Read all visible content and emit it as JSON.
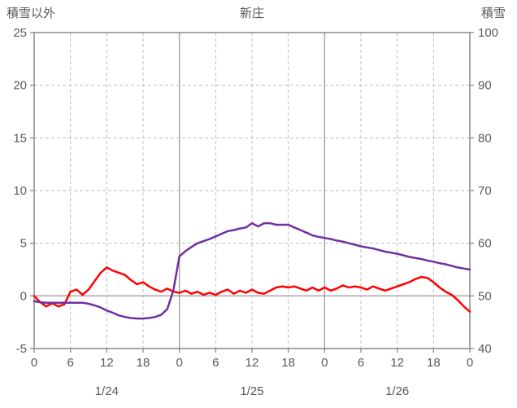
{
  "chart_data": {
    "type": "line",
    "title": "新庄",
    "background": "#ffffff",
    "colors": {
      "text": "#595959",
      "grid": "#bdbdbd",
      "solid_grid": "#a0a0a0",
      "border": "#888888"
    },
    "left_axis": {
      "title": "積雪以外",
      "min": -5,
      "max": 25,
      "ticks": [
        25,
        20,
        15,
        10,
        5,
        0,
        -5
      ]
    },
    "right_axis": {
      "title": "積雪",
      "min": 40,
      "max": 100,
      "ticks": [
        100,
        90,
        80,
        70,
        60,
        50,
        40
      ]
    },
    "x_axis": {
      "hours_total": 72,
      "tick_hours": [
        0,
        6,
        12,
        18,
        24,
        30,
        36,
        42,
        48,
        54,
        60,
        66,
        72
      ],
      "tick_labels": [
        "0",
        "6",
        "12",
        "18",
        "0",
        "6",
        "12",
        "18",
        "0",
        "6",
        "12",
        "18",
        "0"
      ],
      "date_labels": [
        {
          "label": "1/24",
          "hour": 12
        },
        {
          "label": "1/25",
          "hour": 36
        },
        {
          "label": "1/26",
          "hour": 60
        }
      ]
    },
    "series": [
      {
        "name": "積雪以外",
        "axis": "left",
        "color": "#ff0000",
        "values": [
          0,
          -0.6,
          -1.0,
          -0.7,
          -1.0,
          -0.8,
          0.4,
          0.6,
          0.1,
          0.6,
          1.4,
          2.2,
          2.7,
          2.4,
          2.2,
          2.0,
          1.5,
          1.1,
          1.3,
          0.9,
          0.6,
          0.4,
          0.7,
          0.4,
          0.3,
          0.5,
          0.2,
          0.4,
          0.1,
          0.3,
          0.1,
          0.4,
          0.6,
          0.2,
          0.5,
          0.3,
          0.6,
          0.3,
          0.2,
          0.5,
          0.8,
          0.9,
          0.8,
          0.9,
          0.7,
          0.5,
          0.8,
          0.5,
          0.8,
          0.5,
          0.7,
          1.0,
          0.8,
          0.9,
          0.8,
          0.6,
          0.9,
          0.7,
          0.5,
          0.7,
          0.9,
          1.1,
          1.3,
          1.6,
          1.8,
          1.7,
          1.3,
          0.8,
          0.4,
          0.1,
          -0.4,
          -1.0,
          -1.5
        ]
      },
      {
        "name": "積雪",
        "axis": "right",
        "color": "#7030a0",
        "values": [
          49.0,
          48.8,
          48.7,
          48.7,
          48.7,
          48.7,
          48.7,
          48.7,
          48.7,
          48.5,
          48.2,
          47.8,
          47.2,
          46.8,
          46.3,
          46.0,
          45.8,
          45.7,
          45.7,
          45.8,
          46.0,
          46.4,
          47.5,
          51.0,
          57.5,
          58.5,
          59.3,
          60.0,
          60.4,
          60.8,
          61.3,
          61.8,
          62.3,
          62.5,
          62.8,
          63.0,
          63.8,
          63.2,
          63.8,
          63.8,
          63.5,
          63.5,
          63.5,
          63.0,
          62.5,
          62.0,
          61.5,
          61.2,
          61.0,
          60.8,
          60.5,
          60.3,
          60.0,
          59.7,
          59.4,
          59.2,
          59.0,
          58.7,
          58.4,
          58.2,
          58.0,
          57.7,
          57.4,
          57.2,
          57.0,
          56.7,
          56.5,
          56.2,
          56.0,
          55.7,
          55.4,
          55.2,
          55.0
        ]
      }
    ]
  }
}
